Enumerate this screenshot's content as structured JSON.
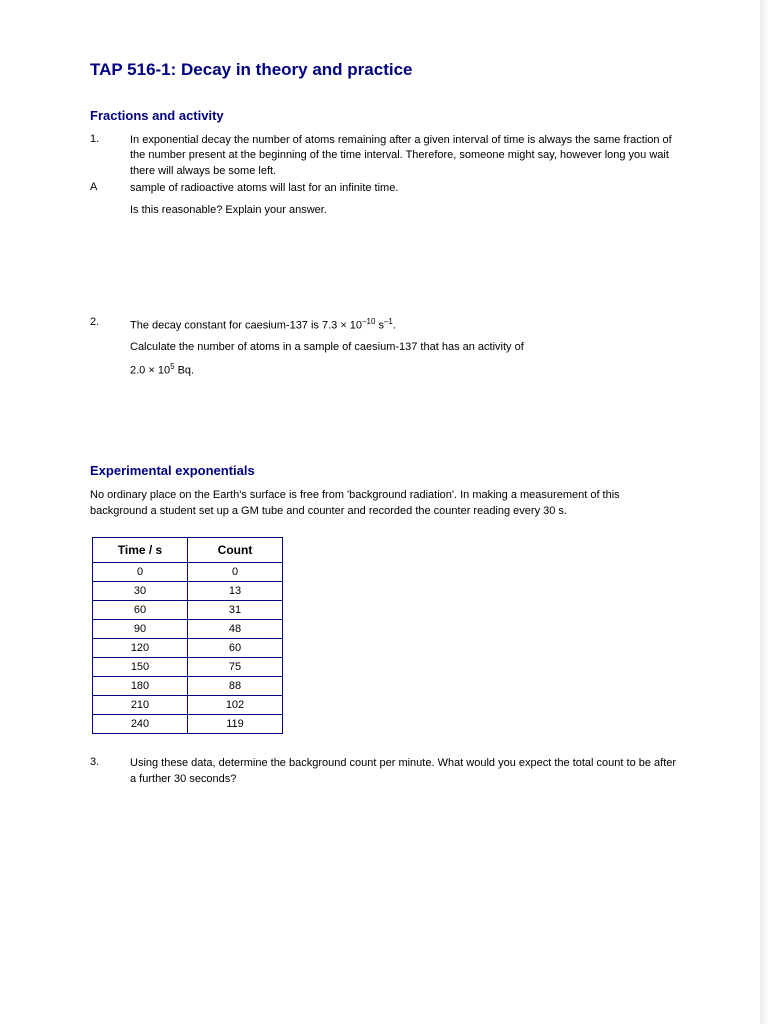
{
  "page": {
    "background_color": "#ffffff",
    "title_color": "#000080",
    "text_color": "#000000",
    "border_color": "#000080",
    "title_fontsize": 17,
    "heading_fontsize": 13,
    "body_fontsize": 11
  },
  "title": "TAP 516-1: Decay in theory and practice",
  "section1": {
    "heading": "Fractions and activity",
    "q1": {
      "number": "1.",
      "marker": "A",
      "line1": "In exponential decay the number of atoms remaining after a given interval of time is always the same fraction of the number present at the beginning of the time interval. Therefore, someone might say, however long you wait there will always be some left.",
      "line2": "sample of radioactive atoms will last for an infinite time.",
      "line3": "Is this reasonable? Explain your answer."
    },
    "q2": {
      "number": "2.",
      "line1_pre": "The decay constant for caesium-137 is 7.3 × 10",
      "line1_exp1": "–10",
      "line1_mid": " s",
      "line1_exp2": "–1",
      "line1_post": ".",
      "line2": "Calculate the number of atoms in a sample of caesium-137 that has an activity of",
      "line3_pre": "2.0 × 10",
      "line3_exp": "5",
      "line3_post": " Bq."
    }
  },
  "section2": {
    "heading": "Experimental exponentials",
    "intro": "No ordinary place on the Earth's surface is free from 'background radiation'. In making a measurement of this background a student set up a GM tube and counter and recorded the counter reading every 30 s.",
    "table": {
      "columns": [
        "Time / s",
        "Count"
      ],
      "rows": [
        [
          "0",
          "0"
        ],
        [
          "30",
          "13"
        ],
        [
          "60",
          "31"
        ],
        [
          "90",
          "48"
        ],
        [
          "120",
          "60"
        ],
        [
          "150",
          "75"
        ],
        [
          "180",
          "88"
        ],
        [
          "210",
          "102"
        ],
        [
          "240",
          "119"
        ]
      ]
    },
    "q3": {
      "number": "3.",
      "text": "Using these data, determine the background count per minute. What would you expect the total count to be after a further 30 seconds?"
    }
  }
}
